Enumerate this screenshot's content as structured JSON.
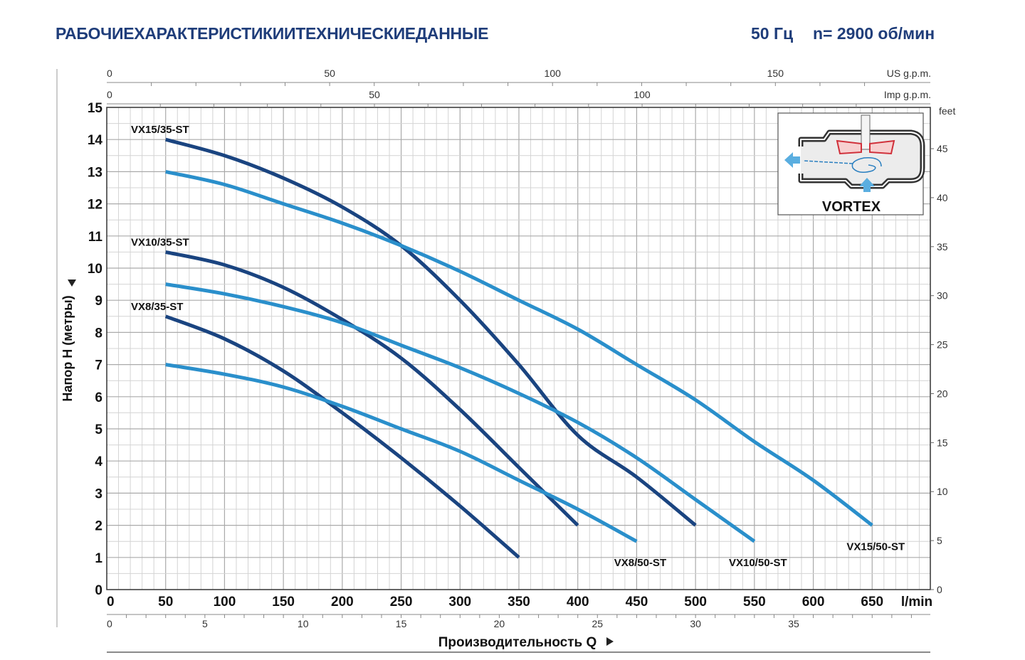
{
  "header": {
    "title": "РАБОЧИЕХАРАКТЕРИСТИКИИТЕХНИЧЕСКИЕДАННЫЕ",
    "frequency": "50 Гц",
    "speed": "n= 2900 об/мин"
  },
  "colors": {
    "dark_curve": "#1a4480",
    "light_curve": "#2a8fcb",
    "grid": "#c8c8c8",
    "title": "#1f3d7a"
  },
  "vortex_inset": {
    "label": "VORTEX",
    "icon": "vortex-pump-cross-section-icon"
  },
  "chart_data": {
    "type": "line",
    "title": "",
    "xlabel": "Производительность Q",
    "ylabel": "Напор H (метры)",
    "x_unit": "l/min",
    "xlim": [
      0,
      700
    ],
    "ylim": [
      0,
      15
    ],
    "grid": true,
    "x_ticks": [
      0,
      50,
      100,
      150,
      200,
      250,
      300,
      350,
      400,
      450,
      500,
      550,
      600,
      650
    ],
    "y_ticks": [
      0,
      1,
      2,
      3,
      4,
      5,
      6,
      7,
      8,
      9,
      10,
      11,
      12,
      13,
      14,
      15
    ],
    "secondary_axes": {
      "us_gpm": {
        "label": "US g.p.m.",
        "ticks": [
          0,
          50,
          100,
          150
        ]
      },
      "imp_gpm": {
        "label": "Imp g.p.m.",
        "ticks": [
          0,
          50,
          100
        ]
      },
      "m3h": {
        "label": "",
        "ticks": [
          0,
          5,
          10,
          15,
          20,
          25,
          30,
          35
        ]
      },
      "feet": {
        "label": "feet",
        "ticks": [
          0,
          5,
          10,
          15,
          20,
          25,
          30,
          35,
          40,
          45
        ]
      }
    },
    "series": [
      {
        "name": "VX15/35-ST",
        "style": "dark",
        "label_pos": "start",
        "points": [
          [
            50,
            14.0
          ],
          [
            100,
            13.5
          ],
          [
            150,
            12.8
          ],
          [
            200,
            11.9
          ],
          [
            250,
            10.7
          ],
          [
            300,
            9.0
          ],
          [
            350,
            7.0
          ],
          [
            400,
            4.8
          ],
          [
            450,
            3.5
          ],
          [
            500,
            2.0
          ]
        ]
      },
      {
        "name": "VX10/35-ST",
        "style": "dark",
        "label_pos": "start",
        "points": [
          [
            50,
            10.5
          ],
          [
            100,
            10.1
          ],
          [
            150,
            9.4
          ],
          [
            200,
            8.4
          ],
          [
            250,
            7.2
          ],
          [
            300,
            5.6
          ],
          [
            350,
            3.8
          ],
          [
            400,
            2.0
          ]
        ]
      },
      {
        "name": "VX8/35-ST",
        "style": "dark",
        "label_pos": "start",
        "points": [
          [
            50,
            8.5
          ],
          [
            100,
            7.8
          ],
          [
            150,
            6.8
          ],
          [
            200,
            5.5
          ],
          [
            250,
            4.1
          ],
          [
            300,
            2.6
          ],
          [
            350,
            1.0
          ]
        ]
      },
      {
        "name": "VX15/50-ST",
        "style": "light",
        "label_pos": "end",
        "points": [
          [
            50,
            13.0
          ],
          [
            100,
            12.6
          ],
          [
            150,
            12.0
          ],
          [
            200,
            11.4
          ],
          [
            250,
            10.7
          ],
          [
            300,
            9.9
          ],
          [
            350,
            9.0
          ],
          [
            400,
            8.1
          ],
          [
            450,
            7.0
          ],
          [
            500,
            5.9
          ],
          [
            550,
            4.6
          ],
          [
            600,
            3.4
          ],
          [
            650,
            2.0
          ]
        ]
      },
      {
        "name": "VX10/50-ST",
        "style": "light",
        "label_pos": "end",
        "points": [
          [
            50,
            9.5
          ],
          [
            100,
            9.2
          ],
          [
            150,
            8.8
          ],
          [
            200,
            8.3
          ],
          [
            250,
            7.6
          ],
          [
            300,
            6.9
          ],
          [
            350,
            6.1
          ],
          [
            400,
            5.2
          ],
          [
            450,
            4.1
          ],
          [
            500,
            2.8
          ],
          [
            550,
            1.5
          ]
        ]
      },
      {
        "name": "VX8/50-ST",
        "style": "light",
        "label_pos": "end",
        "points": [
          [
            50,
            7.0
          ],
          [
            100,
            6.7
          ],
          [
            150,
            6.3
          ],
          [
            200,
            5.7
          ],
          [
            250,
            5.0
          ],
          [
            300,
            4.3
          ],
          [
            350,
            3.4
          ],
          [
            400,
            2.5
          ],
          [
            450,
            1.5
          ]
        ]
      }
    ]
  }
}
